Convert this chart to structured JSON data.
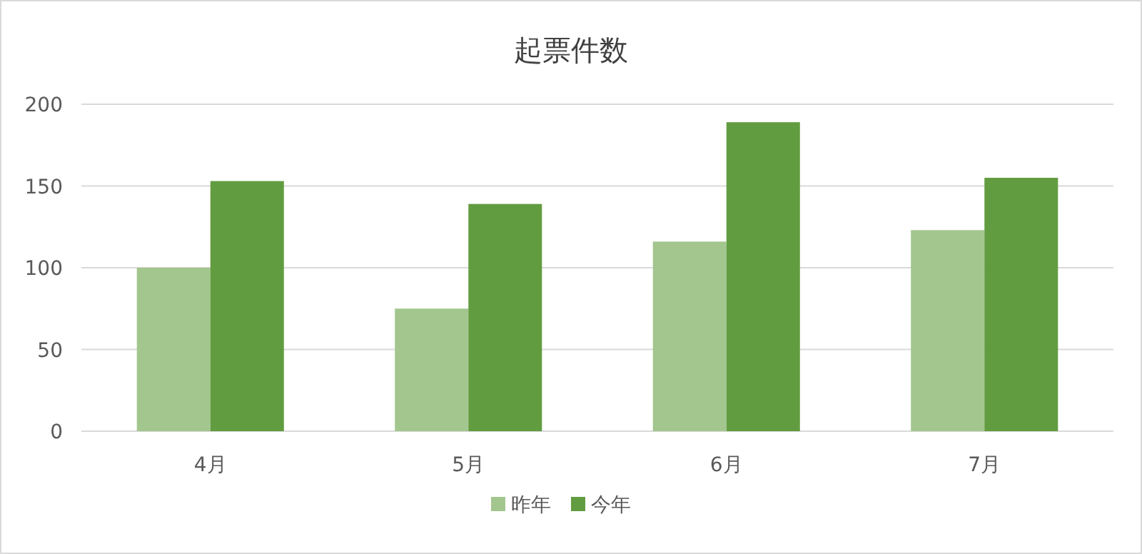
{
  "chart_data": {
    "type": "bar",
    "title": "起票件数",
    "categories": [
      "4月",
      "5月",
      "6月",
      "7月"
    ],
    "series": [
      {
        "name": "昨年",
        "color": "#a3c68f",
        "values": [
          100,
          75,
          116,
          123
        ]
      },
      {
        "name": "今年",
        "color": "#629c40",
        "values": [
          153,
          139,
          189,
          155
        ]
      }
    ],
    "ylim": [
      0,
      200
    ],
    "yticks": [
      0,
      50,
      100,
      150,
      200
    ],
    "grid": "y",
    "legend": "bottom"
  }
}
